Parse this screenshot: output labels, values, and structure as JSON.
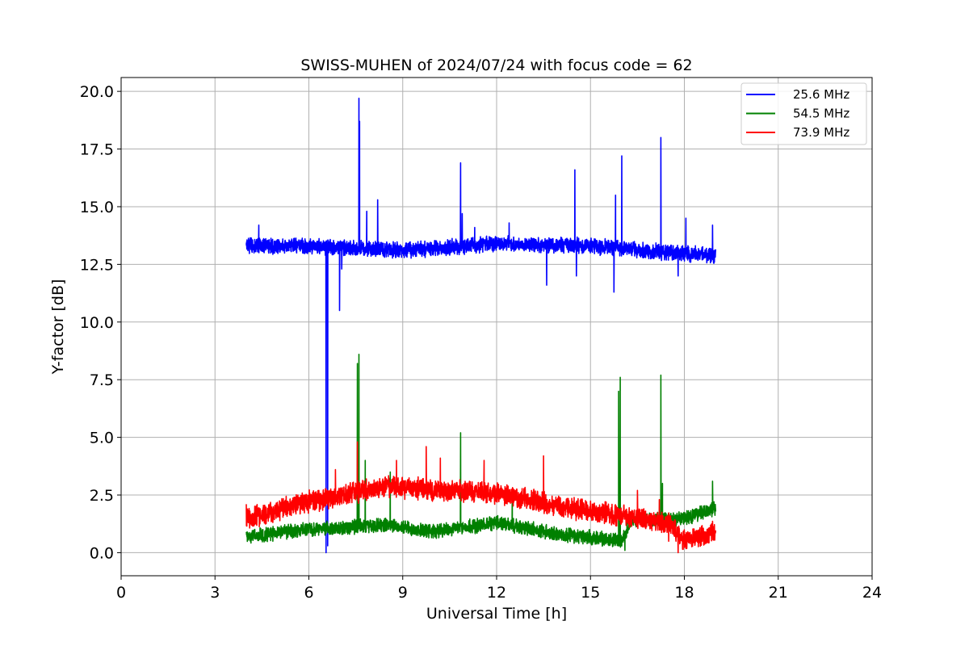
{
  "chart_data": {
    "type": "line",
    "title": "SWISS-MUHEN of 2024/07/24 with focus code = 62",
    "xlabel": "Universal Time [h]",
    "ylabel": "Y-factor [dB]",
    "xlim": [
      0,
      24
    ],
    "ylim": [
      -1.0,
      20.6
    ],
    "xticks": [
      0,
      3,
      6,
      9,
      12,
      15,
      18,
      21,
      24
    ],
    "xtick_labels": [
      "0",
      "3",
      "6",
      "9",
      "12",
      "15",
      "18",
      "21",
      "24"
    ],
    "yticks": [
      0,
      2.5,
      5,
      7.5,
      10,
      12.5,
      15,
      17.5,
      20
    ],
    "ytick_labels": [
      "0.0",
      "2.5",
      "5.0",
      "7.5",
      "10.0",
      "12.5",
      "15.0",
      "17.5",
      "20.0"
    ],
    "grid": true,
    "legend_position": "top-right",
    "series": [
      {
        "name": "25.6 MHz",
        "color": "#0000ff",
        "x_range": [
          4.0,
          19.0
        ],
        "baseline": [
          [
            4.0,
            13.3
          ],
          [
            6.0,
            13.3
          ],
          [
            9.0,
            13.1
          ],
          [
            12.0,
            13.4
          ],
          [
            15.0,
            13.3
          ],
          [
            17.5,
            13.0
          ],
          [
            19.0,
            12.9
          ]
        ],
        "noise": 0.55,
        "spikes": [
          [
            4.4,
            14.2
          ],
          [
            6.55,
            0.0
          ],
          [
            6.6,
            0.3
          ],
          [
            6.98,
            10.5
          ],
          [
            7.05,
            12.3
          ],
          [
            7.6,
            19.7
          ],
          [
            7.62,
            18.7
          ],
          [
            7.85,
            14.8
          ],
          [
            8.2,
            15.3
          ],
          [
            10.85,
            16.9
          ],
          [
            10.9,
            14.7
          ],
          [
            11.3,
            14.1
          ],
          [
            12.4,
            14.3
          ],
          [
            13.6,
            11.6
          ],
          [
            14.5,
            16.6
          ],
          [
            14.55,
            12.0
          ],
          [
            15.75,
            11.3
          ],
          [
            15.8,
            15.5
          ],
          [
            16.0,
            17.2
          ],
          [
            17.25,
            18.0
          ],
          [
            17.8,
            12.0
          ],
          [
            18.05,
            14.5
          ],
          [
            18.9,
            14.2
          ]
        ]
      },
      {
        "name": "54.5 MHz",
        "color": "#008000",
        "x_range": [
          4.0,
          19.0
        ],
        "baseline": [
          [
            4.0,
            0.7
          ],
          [
            6.0,
            1.0
          ],
          [
            8.5,
            1.2
          ],
          [
            10.0,
            0.9
          ],
          [
            12.0,
            1.3
          ],
          [
            14.0,
            0.8
          ],
          [
            16.0,
            0.5
          ],
          [
            16.3,
            1.4
          ],
          [
            18.0,
            1.5
          ],
          [
            19.0,
            1.9
          ]
        ],
        "noise": 0.5,
        "spikes": [
          [
            7.55,
            8.2
          ],
          [
            7.6,
            8.6
          ],
          [
            7.8,
            4.0
          ],
          [
            8.6,
            3.5
          ],
          [
            10.85,
            5.2
          ],
          [
            12.5,
            2.5
          ],
          [
            15.9,
            7.0
          ],
          [
            15.95,
            7.6
          ],
          [
            16.1,
            0.1
          ],
          [
            17.25,
            7.7
          ],
          [
            17.3,
            3.0
          ],
          [
            18.9,
            3.1
          ]
        ]
      },
      {
        "name": "73.9 MHz",
        "color": "#ff0000",
        "x_range": [
          4.0,
          19.0
        ],
        "baseline": [
          [
            4.0,
            1.5
          ],
          [
            6.0,
            2.2
          ],
          [
            8.5,
            2.9
          ],
          [
            10.0,
            2.7
          ],
          [
            12.0,
            2.6
          ],
          [
            14.0,
            2.0
          ],
          [
            16.0,
            1.6
          ],
          [
            17.5,
            1.3
          ],
          [
            18.0,
            0.5
          ],
          [
            19.0,
            0.9
          ]
        ],
        "noise": 0.75,
        "spikes": [
          [
            4.0,
            2.1
          ],
          [
            6.85,
            3.6
          ],
          [
            7.55,
            4.8
          ],
          [
            8.8,
            4.0
          ],
          [
            9.75,
            4.6
          ],
          [
            10.2,
            4.1
          ],
          [
            11.6,
            4.0
          ],
          [
            13.5,
            4.2
          ],
          [
            16.5,
            2.7
          ],
          [
            17.2,
            2.3
          ],
          [
            17.5,
            0.5
          ],
          [
            17.8,
            0.0
          ]
        ]
      }
    ]
  }
}
